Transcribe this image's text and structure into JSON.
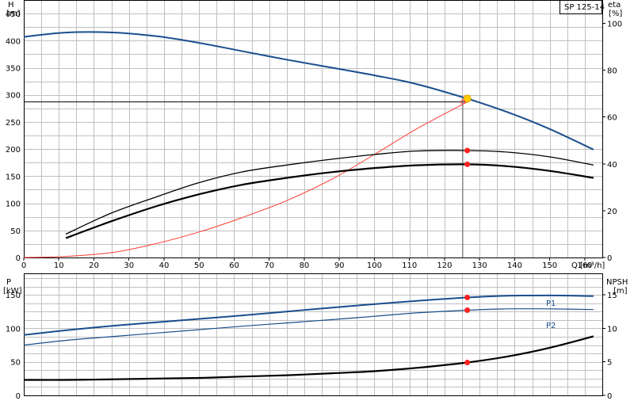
{
  "chart_data": [
    {
      "type": "line",
      "title": "SP 125-14",
      "xlabel": "Q [m³/h]",
      "ylabel_left": [
        "H",
        "[m]"
      ],
      "ylabel_right": [
        "eta",
        "[%]"
      ],
      "xlim": [
        0,
        165
      ],
      "ylim_left": [
        0,
        475
      ],
      "ylim_right": [
        0,
        110
      ],
      "xticks": [
        0,
        10,
        20,
        30,
        40,
        50,
        60,
        70,
        80,
        90,
        100,
        110,
        120,
        130,
        140,
        150,
        160
      ],
      "yticks_left": [
        0,
        50,
        100,
        150,
        200,
        250,
        300,
        350,
        400,
        450
      ],
      "yticks_right": [
        0,
        20,
        40,
        60,
        80,
        100
      ],
      "grid": true,
      "duty_point": {
        "q": 126.5,
        "h": 293
      },
      "system_h": 287,
      "series": [
        {
          "key": "head",
          "axis": "left",
          "color": "#1a4e8c",
          "width": 2,
          "points": [
            [
              0,
              407
            ],
            [
              12,
              415
            ],
            [
              26,
              415
            ],
            [
              38,
              408
            ],
            [
              50,
              396
            ],
            [
              62,
              381
            ],
            [
              75,
              365
            ],
            [
              88,
              350
            ],
            [
              100,
              336
            ],
            [
              112,
              320
            ],
            [
              126.5,
              293
            ],
            [
              138,
              268
            ],
            [
              150,
              237
            ],
            [
              162.5,
              199
            ]
          ],
          "marker": [
            126.5,
            293
          ]
        },
        {
          "key": "system",
          "axis": "left",
          "color": "#ff3b30",
          "width": 1,
          "points": [
            [
              0,
              0
            ],
            [
              12,
              2
            ],
            [
              26,
              10
            ],
            [
              38,
              26
            ],
            [
              50,
              47
            ],
            [
              62,
              73
            ],
            [
              75,
              105
            ],
            [
              88,
              145
            ],
            [
              100,
              190
            ],
            [
              112,
              237
            ],
            [
              126.5,
              287
            ]
          ]
        },
        {
          "key": "eta_pump",
          "axis": "right",
          "color": "#000000",
          "width": 1.3,
          "points": [
            [
              12,
              10
            ],
            [
              25,
              19
            ],
            [
              38,
              26
            ],
            [
              50,
              32
            ],
            [
              62,
              36.5
            ],
            [
              75,
              39.5
            ],
            [
              88,
              42
            ],
            [
              100,
              44
            ],
            [
              112,
              45.5
            ],
            [
              126.5,
              45.7
            ],
            [
              138,
              45
            ],
            [
              150,
              43
            ],
            [
              162.5,
              39.5
            ]
          ],
          "marker": [
            126.5,
            45.7
          ]
        },
        {
          "key": "eta_total",
          "axis": "right",
          "color": "#000000",
          "width": 2.2,
          "points": [
            [
              12,
              8.3
            ],
            [
              25,
              15.5
            ],
            [
              38,
              22
            ],
            [
              50,
              27
            ],
            [
              62,
              31
            ],
            [
              75,
              34
            ],
            [
              88,
              36.5
            ],
            [
              100,
              38.2
            ],
            [
              112,
              39.4
            ],
            [
              126.5,
              39.8
            ],
            [
              138,
              39
            ],
            [
              150,
              37
            ],
            [
              162.5,
              34
            ]
          ],
          "marker": [
            126.5,
            39.8
          ]
        }
      ]
    },
    {
      "type": "line",
      "xlim": [
        0,
        165
      ],
      "ylabel_left": [
        "P",
        "[kW]"
      ],
      "ylabel_right": [
        "NPSH",
        "[m]"
      ],
      "ylim_left": [
        0,
        182
      ],
      "ylim_right": [
        0,
        18.2
      ],
      "yticks_left": [
        0,
        50,
        100,
        150
      ],
      "yticks_right": [
        0,
        5,
        10,
        15
      ],
      "grid": true,
      "series": [
        {
          "name": "P1",
          "key": "p1",
          "axis": "left",
          "color": "#1a4e8c",
          "width": 2,
          "points": [
            [
              0,
              90
            ],
            [
              12,
              97
            ],
            [
              26,
              104
            ],
            [
              38,
              109
            ],
            [
              50,
              114
            ],
            [
              62,
              119
            ],
            [
              75,
              125
            ],
            [
              88,
              131
            ],
            [
              100,
              136
            ],
            [
              112,
              141
            ],
            [
              126.5,
              146
            ],
            [
              138,
              148.5
            ],
            [
              150,
              149
            ],
            [
              162.5,
              148
            ]
          ],
          "marker": [
            126.5,
            146
          ]
        },
        {
          "name": "P2",
          "key": "p2",
          "axis": "left",
          "color": "#1a4e8c",
          "width": 1.2,
          "points": [
            [
              0,
              75
            ],
            [
              12,
              82
            ],
            [
              26,
              88
            ],
            [
              38,
              93
            ],
            [
              50,
              98
            ],
            [
              62,
              103
            ],
            [
              75,
              108
            ],
            [
              88,
              113
            ],
            [
              100,
              118
            ],
            [
              112,
              123
            ],
            [
              126.5,
              127
            ],
            [
              138,
              129
            ],
            [
              150,
              129
            ],
            [
              162.5,
              128
            ]
          ],
          "marker": [
            126.5,
            127
          ]
        },
        {
          "key": "npsh",
          "axis": "right",
          "color": "#000000",
          "width": 2.2,
          "points": [
            [
              0,
              2.3
            ],
            [
              12,
              2.3
            ],
            [
              26,
              2.4
            ],
            [
              38,
              2.5
            ],
            [
              50,
              2.6
            ],
            [
              62,
              2.8
            ],
            [
              75,
              3.0
            ],
            [
              88,
              3.3
            ],
            [
              100,
              3.6
            ],
            [
              112,
              4.1
            ],
            [
              126.5,
              4.9
            ],
            [
              138,
              5.8
            ],
            [
              150,
              7.1
            ],
            [
              162.5,
              8.8
            ]
          ],
          "marker": [
            126.5,
            4.9
          ]
        }
      ]
    }
  ]
}
